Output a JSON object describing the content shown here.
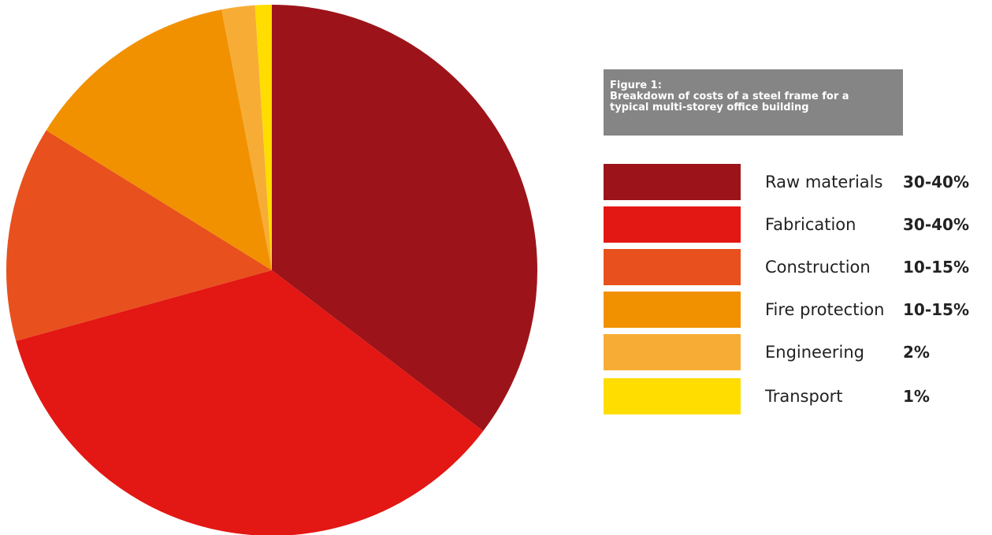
{
  "figure": {
    "caption_line1": "Figure 1:",
    "caption_line2": "Breakdown of costs of a steel frame for a",
    "caption_line3": "typical multi-storey office building"
  },
  "chart_data": {
    "type": "pie",
    "categories": [
      "Raw materials",
      "Fabrication",
      "Construction",
      "Fire protection",
      "Engineering",
      "Transport"
    ],
    "values": [
      35,
      35,
      13,
      13,
      2,
      1
    ],
    "value_labels": [
      "30-40%",
      "30-40%",
      "10-15%",
      "10-15%",
      "2%",
      "1%"
    ],
    "colors": [
      "#9c141a",
      "#e31713",
      "#e8501e",
      "#f19100",
      "#f7ad35",
      "#ffdd00"
    ],
    "start_angle_deg": 0,
    "direction": "clockwise",
    "legend_position": "right"
  }
}
